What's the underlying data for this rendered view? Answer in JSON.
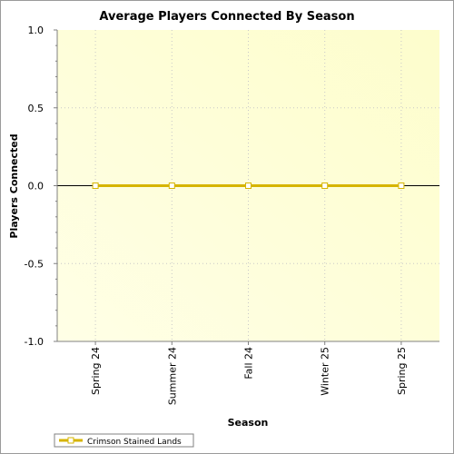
{
  "chart_data": {
    "type": "line",
    "title": "Average Players Connected By Season",
    "xlabel": "Season",
    "ylabel": "Players Connected",
    "categories": [
      "Spring 24",
      "Summer 24",
      "Fall 24",
      "Winter 25",
      "Spring 25"
    ],
    "ylim": [
      -1.0,
      1.0
    ],
    "yticks": [
      "1.0",
      "0.5",
      "0.0",
      "-0.5",
      "-1.0"
    ],
    "grid": true,
    "legend_position": "bottom-left",
    "series": [
      {
        "name": "Crimson Stained Lands",
        "values": [
          0,
          0,
          0,
          0,
          0
        ],
        "color": "#d6b400"
      }
    ],
    "plot_background": [
      "#ffffe0",
      "#fdfdc8"
    ]
  }
}
